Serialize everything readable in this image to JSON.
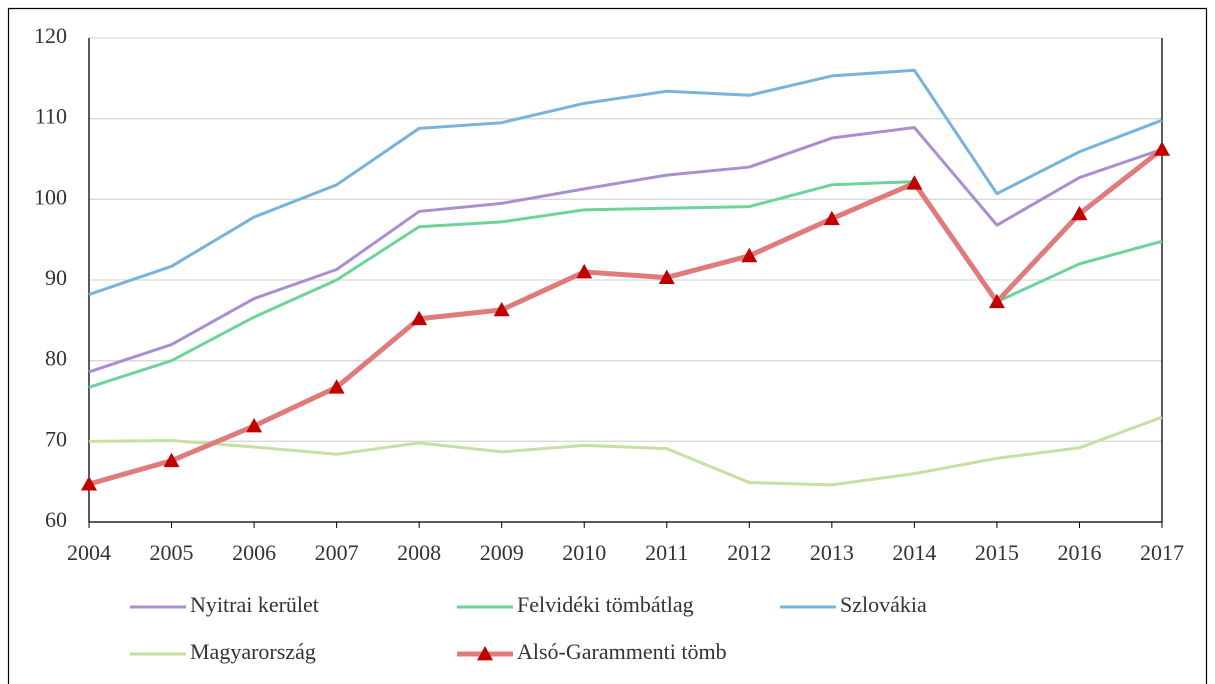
{
  "chart_data": {
    "type": "line",
    "x": [
      2004,
      2005,
      2006,
      2007,
      2008,
      2009,
      2010,
      2011,
      2012,
      2013,
      2014,
      2015,
      2016,
      2017
    ],
    "xlim": [
      2004,
      2017
    ],
    "xticks": [
      2004,
      2005,
      2006,
      2007,
      2008,
      2009,
      2010,
      2011,
      2012,
      2013,
      2014,
      2015,
      2016,
      2017
    ],
    "ylim": [
      60,
      120
    ],
    "yticks": [
      60,
      70,
      80,
      90,
      100,
      110,
      120
    ],
    "grid": true,
    "legend": "bottom",
    "series": [
      {
        "name": "Nyitrai kerület",
        "color": "#a98fd0",
        "values": [
          78.6,
          82.0,
          87.7,
          91.3,
          98.5,
          99.5,
          101.3,
          103.0,
          104.0,
          107.6,
          108.9,
          96.8,
          102.7,
          106.2
        ]
      },
      {
        "name": "Felvidéki tömbátlag",
        "color": "#6cd49a",
        "values": [
          76.7,
          80.0,
          85.4,
          90.0,
          96.6,
          97.2,
          98.7,
          98.9,
          99.1,
          101.8,
          102.2,
          87.3,
          92.0,
          94.8
        ]
      },
      {
        "name": "Szlovákia",
        "color": "#79b3dc",
        "values": [
          88.2,
          91.7,
          97.8,
          101.8,
          108.8,
          109.5,
          111.9,
          113.4,
          112.9,
          115.3,
          116.0,
          100.7,
          105.9,
          109.8
        ]
      },
      {
        "name": "Magyarország",
        "color": "#c5e0a0",
        "values": [
          70.0,
          70.1,
          69.3,
          68.4,
          69.8,
          68.7,
          69.5,
          69.1,
          64.9,
          64.6,
          66.0,
          67.9,
          69.2,
          73.0
        ]
      },
      {
        "name": "Alsó-Garammenti  tömb",
        "color": "#e07b7b",
        "marker": "triangle",
        "marker_color": "#c00000",
        "values": [
          64.7,
          67.6,
          71.9,
          76.7,
          85.2,
          86.3,
          91.0,
          90.3,
          93.0,
          97.6,
          102.0,
          87.3,
          98.2,
          106.2
        ]
      }
    ]
  }
}
